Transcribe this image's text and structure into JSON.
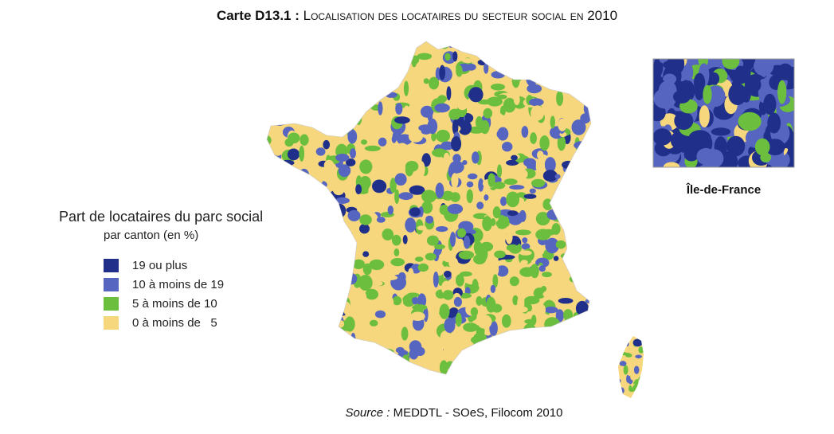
{
  "title": {
    "label": "Carte D13.1 :",
    "text": "Localisation des locataires du secteur social en 2010"
  },
  "legend": {
    "title": "Part de locataires du parc social",
    "subtitle": "par canton (en %)",
    "items": [
      {
        "label": "19 ou plus",
        "color": "#1f2f8a"
      },
      {
        "label": "10 à moins de 19",
        "color": "#5666c0"
      },
      {
        "label": "5 à moins de 10",
        "color": "#6cbf3e"
      },
      {
        "label": "0 à moins de   5",
        "color": "#f7d77e"
      }
    ]
  },
  "inset": {
    "caption": "Île-de-France"
  },
  "source": {
    "label": "Source :",
    "text": "MEDDTL - SOeS, Filocom 2010"
  }
}
